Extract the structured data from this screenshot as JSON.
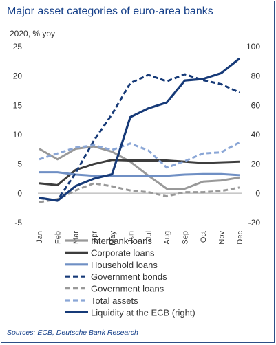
{
  "chart_data": {
    "type": "line",
    "title": "Major asset categories of euro-area banks",
    "subtitle": "2020, % yoy",
    "source": "Sources: ECB, Deutsche Bank Research",
    "categories": [
      "Jan",
      "Feb",
      "Mar",
      "Apr",
      "May",
      "Jun",
      "Jul",
      "Aug",
      "Sep",
      "Oct",
      "Nov",
      "Dec"
    ],
    "left_axis": {
      "ylim": [
        -5,
        25
      ],
      "ticks": [
        "-5",
        "0",
        "5",
        "10",
        "15",
        "20",
        "25"
      ]
    },
    "right_axis": {
      "ylim": [
        -20,
        100
      ],
      "ticks": [
        "-20",
        "0",
        "20",
        "40",
        "60",
        "80",
        "100"
      ]
    },
    "grid": false,
    "legend_position": "bottom",
    "series": [
      {
        "name": "Interbank loans",
        "axis": "left",
        "color": "#999999",
        "dash": "solid",
        "values": [
          7.6,
          5.8,
          7.6,
          8.0,
          7.1,
          5.4,
          3.0,
          0.8,
          0.8,
          2.0,
          2.2,
          2.7
        ]
      },
      {
        "name": "Corporate loans",
        "axis": "left",
        "color": "#3d3d3d",
        "dash": "solid",
        "values": [
          1.7,
          1.4,
          4.0,
          5.0,
          5.7,
          5.6,
          5.6,
          5.6,
          5.4,
          5.2,
          5.3,
          5.4
        ]
      },
      {
        "name": "Household loans",
        "axis": "left",
        "color": "#6f8fc4",
        "dash": "solid",
        "values": [
          3.6,
          3.6,
          3.2,
          3.0,
          3.0,
          3.0,
          3.0,
          3.0,
          3.2,
          3.3,
          3.3,
          3.1
        ]
      },
      {
        "name": "Government bonds",
        "axis": "left",
        "color": "#163a78",
        "dash": "dash",
        "values": [
          -0.8,
          -1.2,
          3.5,
          9.0,
          13.5,
          18.8,
          20.2,
          19.1,
          20.3,
          19.3,
          18.6,
          17.2
        ]
      },
      {
        "name": "Government loans",
        "axis": "left",
        "color": "#999999",
        "dash": "dash",
        "values": [
          -1.5,
          -1.0,
          0.5,
          1.7,
          1.2,
          0.5,
          0.2,
          -0.5,
          0.2,
          0.2,
          0.4,
          1.0
        ]
      },
      {
        "name": "Total assets",
        "axis": "left",
        "color": "#8aa6d6",
        "dash": "dash",
        "values": [
          5.8,
          6.8,
          7.8,
          8.2,
          7.4,
          8.5,
          7.3,
          4.4,
          5.5,
          6.8,
          7.0,
          8.7
        ]
      },
      {
        "name": "Liquidity at the ECB (right)",
        "axis": "right",
        "color": "#163a78",
        "dash": "solid",
        "values": [
          -3,
          -5,
          5,
          10,
          13,
          52,
          58,
          62,
          77,
          78,
          82,
          92
        ]
      }
    ]
  }
}
